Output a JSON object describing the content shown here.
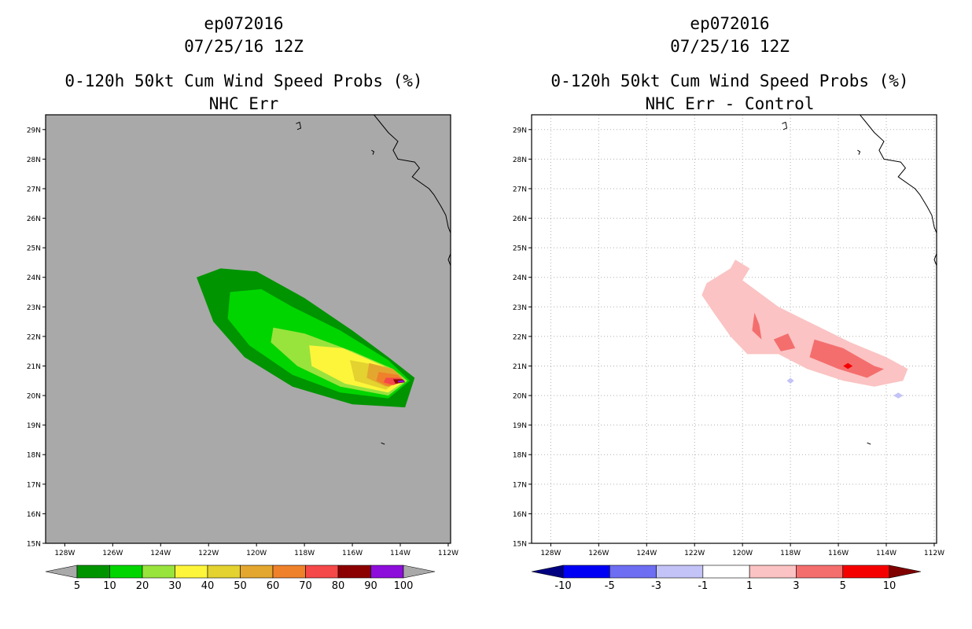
{
  "left": {
    "title_lines": [
      "ep072016",
      "07/25/16 12Z",
      "0-120h 50kt Cum Wind Speed Probs (%)",
      "NHC Err"
    ],
    "background_color": "#a9a9a9",
    "colorbar": {
      "colors": [
        "#a9a9a9",
        "#009400",
        "#00d500",
        "#99e33d",
        "#fdf53a",
        "#e3d22f",
        "#e3a72f",
        "#ef812b",
        "#f54848",
        "#8b0000",
        "#8d0ddb",
        "#a9a9a9"
      ],
      "labels": [
        "5",
        "10",
        "20",
        "30",
        "40",
        "50",
        "60",
        "70",
        "80",
        "90",
        "100"
      ]
    }
  },
  "right": {
    "title_lines": [
      "ep072016",
      "07/25/16 12Z",
      "0-120h 50kt Cum Wind Speed Probs (%)",
      "NHC Err - Control"
    ],
    "background_color": "#ffffff",
    "colorbar": {
      "colors": [
        "#000080",
        "#0000f5",
        "#6e6ef2",
        "#c3c3f7",
        "#ffffff",
        "#fbc3c3",
        "#f46e6e",
        "#f50000",
        "#800000"
      ],
      "labels": [
        "-10",
        "-5",
        "-3",
        "-1",
        "1",
        "3",
        "5",
        "10"
      ]
    }
  },
  "axes": {
    "lat_labels": [
      "29N",
      "28N",
      "27N",
      "26N",
      "25N",
      "24N",
      "23N",
      "22N",
      "21N",
      "20N",
      "19N",
      "18N",
      "17N",
      "16N",
      "15N"
    ],
    "lon_labels": [
      "128W",
      "126W",
      "124W",
      "122W",
      "120W",
      "118W",
      "116W",
      "114W",
      "112W"
    ]
  },
  "map_extent": {
    "lon_min": -128.8,
    "lon_max": -111.9,
    "lat_min": 15,
    "lat_max": 29.5
  },
  "prob_contours": [
    {
      "level": 5,
      "color": "#009400",
      "points": [
        [
          -122.5,
          24.0
        ],
        [
          -121.5,
          24.3
        ],
        [
          -120.0,
          24.2
        ],
        [
          -118.0,
          23.3
        ],
        [
          -116.0,
          22.2
        ],
        [
          -114.5,
          21.3
        ],
        [
          -113.4,
          20.6
        ],
        [
          -113.8,
          19.6
        ],
        [
          -116.0,
          19.7
        ],
        [
          -118.5,
          20.3
        ],
        [
          -120.5,
          21.3
        ],
        [
          -121.8,
          22.5
        ]
      ]
    },
    {
      "level": 10,
      "color": "#00d500",
      "points": [
        [
          -121.1,
          23.5
        ],
        [
          -119.8,
          23.6
        ],
        [
          -118.5,
          23.0
        ],
        [
          -116.5,
          22.2
        ],
        [
          -114.5,
          21.2
        ],
        [
          -113.6,
          20.5
        ],
        [
          -114.5,
          19.9
        ],
        [
          -116.5,
          20.1
        ],
        [
          -118.5,
          20.7
        ],
        [
          -120.3,
          21.7
        ],
        [
          -121.2,
          22.6
        ]
      ]
    },
    {
      "level": 20,
      "color": "#99e33d",
      "points": [
        [
          -119.3,
          22.3
        ],
        [
          -118.0,
          22.1
        ],
        [
          -116.0,
          21.5
        ],
        [
          -114.3,
          20.9
        ],
        [
          -113.7,
          20.5
        ],
        [
          -114.5,
          20.0
        ],
        [
          -116.5,
          20.3
        ],
        [
          -118.3,
          21.0
        ],
        [
          -119.4,
          21.8
        ]
      ]
    },
    {
      "level": 30,
      "color": "#fdf53a",
      "points": [
        [
          -117.8,
          21.7
        ],
        [
          -116.4,
          21.6
        ],
        [
          -114.7,
          21.0
        ],
        [
          -113.8,
          20.5
        ],
        [
          -114.5,
          20.1
        ],
        [
          -116.3,
          20.4
        ],
        [
          -117.7,
          21.0
        ]
      ]
    },
    {
      "level": 40,
      "color": "#e3d22f",
      "points": [
        [
          -116.1,
          21.2
        ],
        [
          -114.8,
          21.0
        ],
        [
          -113.9,
          20.6
        ],
        [
          -114.6,
          20.2
        ],
        [
          -115.9,
          20.5
        ]
      ]
    },
    {
      "level": 50,
      "color": "#e3a72f",
      "points": [
        [
          -115.3,
          21.1
        ],
        [
          -114.3,
          20.9
        ],
        [
          -113.9,
          20.6
        ],
        [
          -114.6,
          20.3
        ],
        [
          -115.4,
          20.6
        ]
      ]
    },
    {
      "level": 60,
      "color": "#ef812b",
      "points": [
        [
          -114.9,
          20.8
        ],
        [
          -114.1,
          20.7
        ],
        [
          -113.9,
          20.5
        ],
        [
          -114.5,
          20.3
        ],
        [
          -115.0,
          20.5
        ]
      ]
    },
    {
      "level": 70,
      "color": "#f54848",
      "points": [
        [
          -114.6,
          20.6
        ],
        [
          -114.0,
          20.6
        ],
        [
          -113.8,
          20.5
        ],
        [
          -114.3,
          20.35
        ],
        [
          -114.7,
          20.45
        ]
      ]
    },
    {
      "level": 80,
      "color": "#8b0000",
      "points": [
        [
          -114.3,
          20.55
        ],
        [
          -113.9,
          20.55
        ],
        [
          -113.8,
          20.45
        ],
        [
          -114.2,
          20.4
        ]
      ]
    },
    {
      "level": 90,
      "color": "#8d0ddb",
      "points": [
        [
          -114.1,
          20.5
        ],
        [
          -113.85,
          20.52
        ],
        [
          -113.85,
          20.45
        ],
        [
          -114.1,
          20.45
        ]
      ]
    }
  ],
  "diff_contours": [
    {
      "level": 1,
      "color": "#fbc3c3",
      "points": [
        [
          -121.5,
          23.8
        ],
        [
          -120.5,
          24.3
        ],
        [
          -120.3,
          24.6
        ],
        [
          -119.7,
          24.3
        ],
        [
          -120.0,
          23.9
        ],
        [
          -119.5,
          23.6
        ],
        [
          -118.5,
          23.0
        ],
        [
          -117.0,
          22.4
        ],
        [
          -115.5,
          21.8
        ],
        [
          -114.0,
          21.3
        ],
        [
          -113.1,
          20.9
        ],
        [
          -113.3,
          20.5
        ],
        [
          -114.5,
          20.3
        ],
        [
          -115.8,
          20.5
        ],
        [
          -117.3,
          20.9
        ],
        [
          -118.5,
          21.4
        ],
        [
          -119.8,
          21.4
        ],
        [
          -120.5,
          22.0
        ],
        [
          -121.2,
          22.8
        ],
        [
          -121.7,
          23.4
        ]
      ]
    },
    {
      "level": 3,
      "color": "#f46e6e",
      "points": [
        [
          -119.5,
          22.8
        ],
        [
          -119.3,
          22.4
        ],
        [
          -119.2,
          21.9
        ],
        [
          -119.6,
          22.2
        ]
      ]
    },
    {
      "level": 3,
      "color": "#f46e6e",
      "points": [
        [
          -118.7,
          21.9
        ],
        [
          -118.1,
          22.1
        ],
        [
          -117.8,
          21.6
        ],
        [
          -118.4,
          21.5
        ]
      ]
    },
    {
      "level": 3,
      "color": "#f46e6e",
      "points": [
        [
          -117.0,
          21.9
        ],
        [
          -115.8,
          21.6
        ],
        [
          -114.5,
          21.0
        ],
        [
          -114.1,
          20.9
        ],
        [
          -114.8,
          20.6
        ],
        [
          -116.0,
          20.9
        ],
        [
          -117.2,
          21.3
        ]
      ]
    },
    {
      "level": 5,
      "color": "#f50000",
      "points": [
        [
          -115.6,
          21.1
        ],
        [
          -115.4,
          21.0
        ],
        [
          -115.6,
          20.9
        ],
        [
          -115.8,
          21.0
        ]
      ]
    },
    {
      "level": -1,
      "color": "#c3c3f7",
      "points": [
        [
          -118.0,
          20.6
        ],
        [
          -117.85,
          20.5
        ],
        [
          -118.0,
          20.4
        ],
        [
          -118.15,
          20.5
        ]
      ]
    },
    {
      "level": -1,
      "color": "#c3c3f7",
      "points": [
        [
          -113.5,
          20.1
        ],
        [
          -113.3,
          20.0
        ],
        [
          -113.5,
          19.9
        ],
        [
          -113.7,
          20.0
        ]
      ]
    }
  ],
  "coastline": [
    [
      [
        -115.5,
        29.8
      ],
      [
        -115.2,
        29.6
      ],
      [
        -114.9,
        29.3
      ],
      [
        -114.5,
        28.9
      ],
      [
        -114.1,
        28.6
      ],
      [
        -114.3,
        28.3
      ],
      [
        -114.1,
        28.0
      ],
      [
        -113.4,
        27.9
      ],
      [
        -113.2,
        27.7
      ],
      [
        -113.5,
        27.4
      ],
      [
        -112.8,
        27.0
      ],
      [
        -112.6,
        26.8
      ],
      [
        -112.3,
        26.4
      ],
      [
        -112.1,
        26.1
      ],
      [
        -112.0,
        25.7
      ],
      [
        -111.9,
        25.5
      ]
    ],
    [
      [
        -111.9,
        24.8
      ],
      [
        -112.0,
        24.6
      ],
      [
        -111.9,
        24.4
      ]
    ]
  ],
  "islands": [
    [
      [
        -118.35,
        29.2
      ],
      [
        -118.2,
        29.25
      ],
      [
        -118.15,
        29.05
      ],
      [
        -118.3,
        29.0
      ]
    ],
    [
      [
        -115.2,
        28.3
      ],
      [
        -115.1,
        28.25
      ],
      [
        -115.15,
        28.15
      ]
    ],
    [
      [
        -114.8,
        18.4
      ],
      [
        -114.65,
        18.35
      ]
    ]
  ]
}
